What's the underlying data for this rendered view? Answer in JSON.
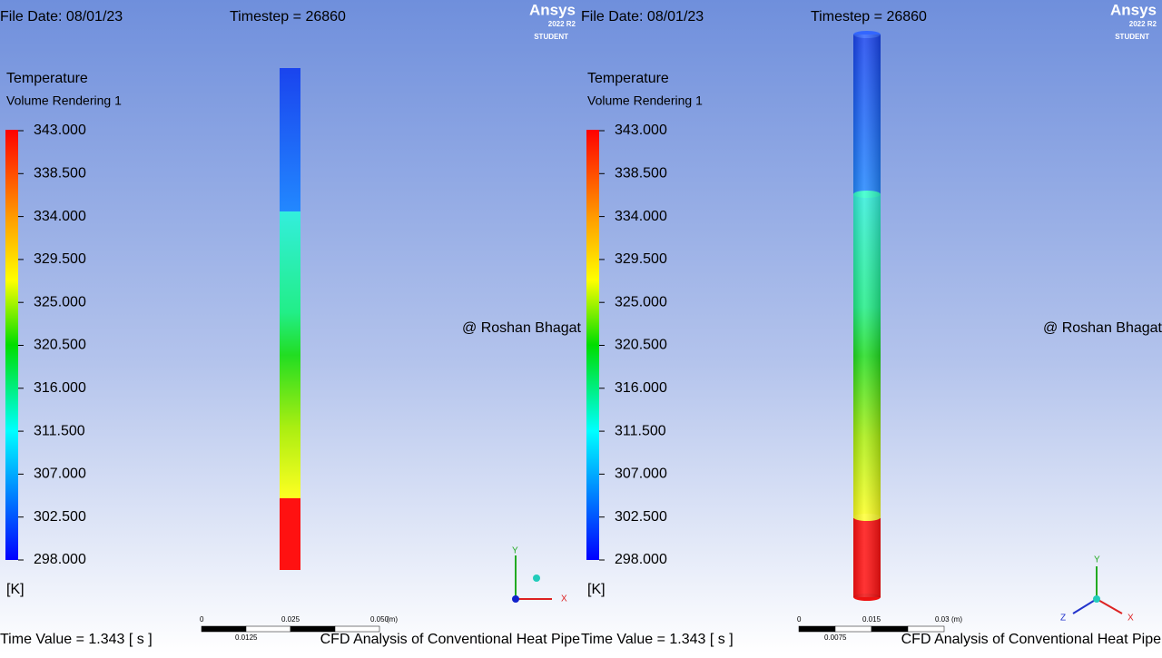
{
  "panels": [
    {
      "file_date": "File Date: 08/01/23",
      "timestep": "Timestep = 26860",
      "logo": {
        "brand": "Ansys",
        "version": "2022 R2",
        "edition": "STUDENT"
      },
      "legend": {
        "title": "Temperature",
        "subtitle": "Volume Rendering 1",
        "ticks": [
          "343.000",
          "338.500",
          "334.000",
          "329.500",
          "325.000",
          "320.500",
          "316.000",
          "311.500",
          "307.000",
          "302.500",
          "298.000"
        ],
        "unit": "[K]"
      },
      "watermark": "@ Roshan Bhagat",
      "time_value": "Time Value = 1.343 [ s ]",
      "caption": "CFD Analysis of Conventional Heat Pipe",
      "scale": {
        "ticks": [
          "0",
          "0.025",
          "0.050"
        ],
        "unit": "(m)",
        "sub_tick": "0.0125"
      },
      "axes": [
        "Y",
        "X"
      ]
    },
    {
      "file_date": "File Date: 08/01/23",
      "timestep": "Timestep = 26860",
      "logo": {
        "brand": "Ansys",
        "version": "2022 R2",
        "edition": "STUDENT"
      },
      "legend": {
        "title": "Temperature",
        "subtitle": "Volume Rendering 1",
        "ticks": [
          "343.000",
          "338.500",
          "334.000",
          "329.500",
          "325.000",
          "320.500",
          "316.000",
          "311.500",
          "307.000",
          "302.500",
          "298.000"
        ],
        "unit": "[K]"
      },
      "watermark": "@ Roshan Bhagat",
      "time_value": "Time Value = 1.343 [ s ]",
      "caption": "CFD Analysis of Conventional Heat Pipe",
      "scale": {
        "ticks": [
          "0",
          "0.015",
          "0.03"
        ],
        "unit": "(m)",
        "sub_tick": "0.0075"
      },
      "axes": [
        "Y",
        "Z",
        "X"
      ]
    }
  ]
}
